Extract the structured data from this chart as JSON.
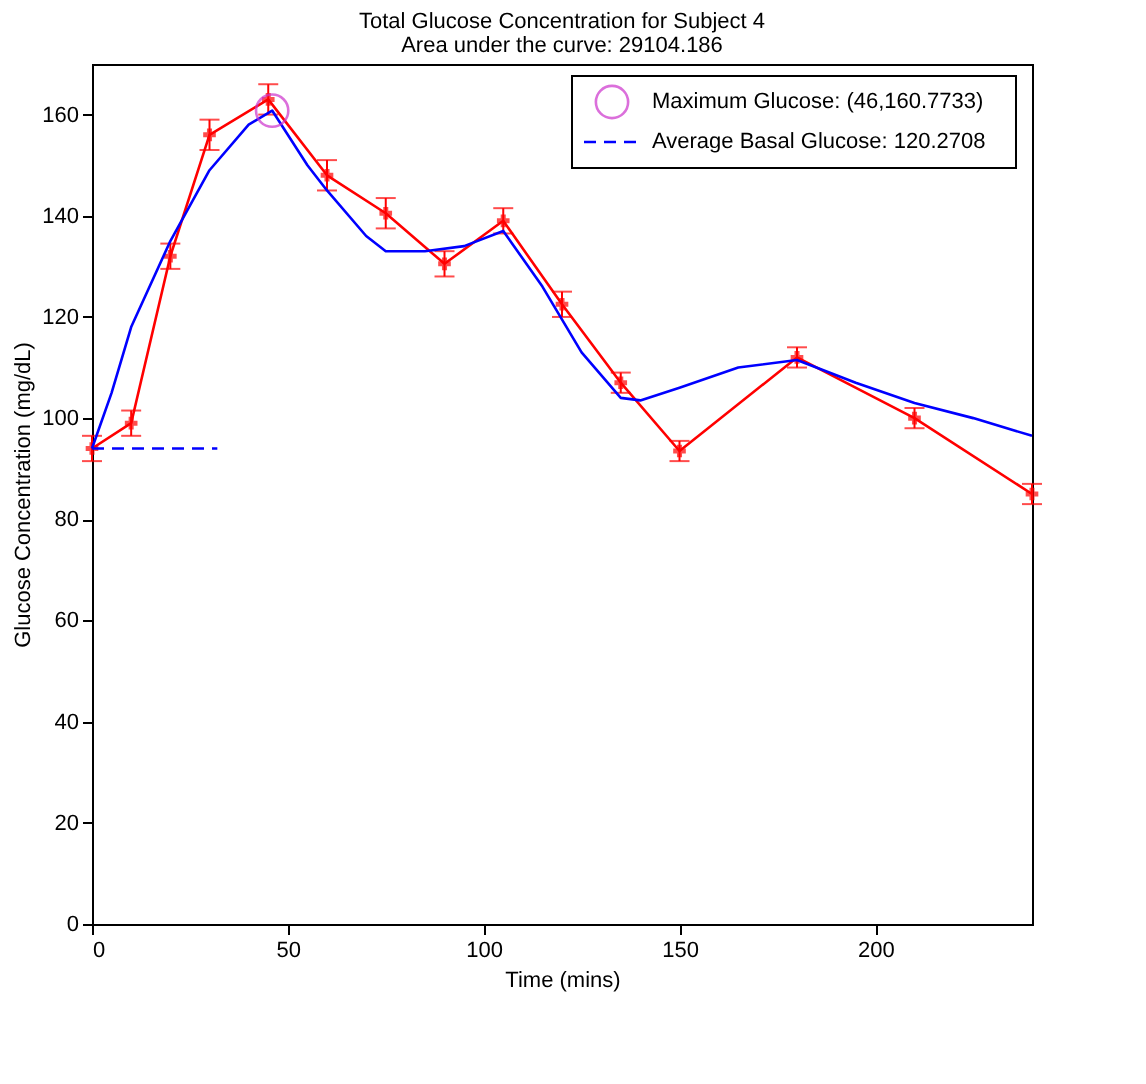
{
  "chart_data": {
    "type": "line",
    "title": "Total Glucose Concentration for Subject 4",
    "subtitle": "Area under the curve: 29104.186",
    "xlabel": "Time (mins)",
    "ylabel": "Glucose Concentration (mg/dL)",
    "xlim": [
      0,
      240
    ],
    "xticks": [
      0,
      50,
      100,
      150,
      200
    ],
    "ylim": [
      0,
      170
    ],
    "yticks": [
      0,
      20,
      40,
      60,
      80,
      100,
      120,
      140,
      160
    ],
    "grid": false,
    "legend": "top right",
    "series": [
      {
        "color": "#ff0000",
        "marker": "cross",
        "line_style": "solid",
        "x": [
          0,
          10,
          20,
          30,
          45,
          60,
          75,
          90,
          105,
          120,
          135,
          150,
          180,
          210,
          240
        ],
        "values": [
          94,
          99,
          132,
          156,
          163,
          148,
          140.5,
          130.5,
          139,
          122.5,
          107,
          93.5,
          112,
          100,
          85
        ],
        "errors": [
          2.5,
          2.5,
          2.5,
          3,
          3,
          3,
          3,
          2.5,
          2.5,
          2.5,
          2,
          2,
          2,
          2,
          2
        ]
      },
      {
        "color": "#0000ff",
        "marker": "none",
        "line_style": "solid",
        "x": [
          0,
          5,
          10,
          20,
          30,
          40,
          46,
          55,
          60,
          70,
          75,
          85,
          95,
          105,
          115,
          125,
          135,
          140,
          150,
          165,
          180,
          195,
          210,
          225,
          240
        ],
        "values": [
          94,
          105,
          118,
          135,
          149,
          158,
          160.8,
          150,
          145,
          136,
          133,
          133,
          134,
          137,
          126,
          113,
          104,
          103.5,
          106,
          110,
          111.5,
          107,
          103,
          100,
          96.5
        ]
      },
      {
        "type": "scatter",
        "name": "Maximum Glucose: (46,160.7733)",
        "color": "#cc33cc",
        "marker": "circle",
        "x": [
          46
        ],
        "values": [
          160.7733
        ]
      },
      {
        "name": "Average Basal Glucose: 120.2708",
        "color": "#0000ff",
        "marker": "none",
        "line_style": "dashed",
        "x": [
          0,
          32
        ],
        "values": [
          94,
          94
        ]
      }
    ]
  }
}
